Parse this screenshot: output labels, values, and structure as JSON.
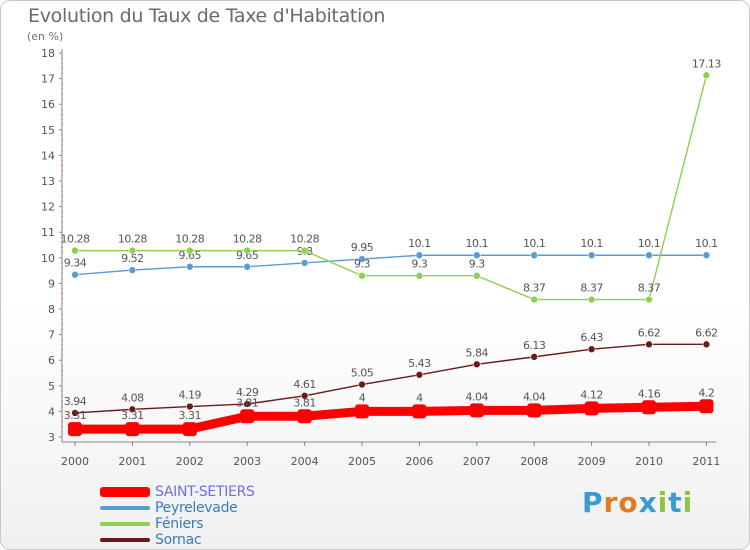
{
  "title": "Evolution du Taux de Taxe d'Habitation",
  "unit_label": "(en %)",
  "logo": {
    "letters": [
      "P",
      "r",
      "o",
      "x",
      "i",
      "t",
      "i"
    ],
    "colors": [
      "#3a9ad9",
      "#e07b1f",
      "#e07b1f",
      "#3a9ad9",
      "#8cc63f",
      "#3a9ad9",
      "#8cc63f"
    ]
  },
  "chart_data": {
    "type": "line",
    "title": "Evolution du Taux de Taxe d'Habitation",
    "ylabel": "(en %)",
    "xlabel": "",
    "categories": [
      "2000",
      "2001",
      "2002",
      "2003",
      "2004",
      "2005",
      "2006",
      "2007",
      "2008",
      "2009",
      "2010",
      "2011"
    ],
    "ylim": [
      3,
      18
    ],
    "yticks": [
      "3",
      "4",
      "5",
      "6",
      "7",
      "8",
      "9",
      "10",
      "11",
      "12",
      "13",
      "14",
      "15",
      "16",
      "17",
      "18"
    ],
    "grid": false,
    "legend_position": "bottom-left",
    "series": [
      {
        "name": "Sornac",
        "color": "#6b1a1a",
        "values": [
          3.94,
          4.08,
          4.19,
          4.29,
          4.61,
          5.05,
          5.43,
          5.84,
          6.13,
          6.43,
          6.62,
          6.62
        ],
        "labels": [
          "3.94",
          "4.08",
          "4.19",
          "4.29",
          "4.61",
          "5.05",
          "5.43",
          "5.84",
          "6.13",
          "6.43",
          "6.62",
          "6.62"
        ]
      },
      {
        "name": "Peyrelevade",
        "color": "#5b9bd5",
        "values": [
          9.34,
          9.52,
          9.65,
          9.65,
          9.8,
          9.95,
          10.1,
          10.1,
          10.1,
          10.1,
          10.1,
          10.1
        ],
        "labels": [
          "9.34",
          "9.52",
          "9.65",
          "9.65",
          "9.8",
          "9.95",
          "10.1",
          "10.1",
          "10.1",
          "10.1",
          "10.1",
          "10.1"
        ]
      },
      {
        "name": "Féniers",
        "color": "#8ed050",
        "values": [
          10.28,
          10.28,
          10.28,
          10.28,
          10.28,
          9.3,
          9.3,
          9.3,
          8.37,
          8.37,
          8.37,
          17.13
        ],
        "labels": [
          "10.28",
          "10.28",
          "10.28",
          "10.28",
          "10.28",
          "9.3",
          "9.3",
          "9.3",
          "8.37",
          "8.37",
          "8.37",
          "17.13"
        ]
      },
      {
        "name": "SAINT-SETIERS",
        "color": "#ff0000",
        "values": [
          3.31,
          3.31,
          3.31,
          3.81,
          3.81,
          4,
          4,
          4.04,
          4.04,
          4.12,
          4.16,
          4.2
        ],
        "labels": [
          "3.31",
          "3.31",
          "3.31",
          "3.81",
          "3.81",
          "4",
          "4",
          "4.04",
          "4.04",
          "4.12",
          "4.16",
          "4.2"
        ]
      }
    ],
    "legend": [
      {
        "name": "SAINT-SETIERS",
        "color": "#ff0000",
        "text_color": "#6f6fe0"
      },
      {
        "name": "Peyrelevade",
        "color": "#5b9bd5",
        "text_color": "#3a7ab8"
      },
      {
        "name": "Féniers",
        "color": "#8ed050",
        "text_color": "#3a7ab8"
      },
      {
        "name": "Sornac",
        "color": "#6b1a1a",
        "text_color": "#3a7ab8"
      }
    ]
  }
}
